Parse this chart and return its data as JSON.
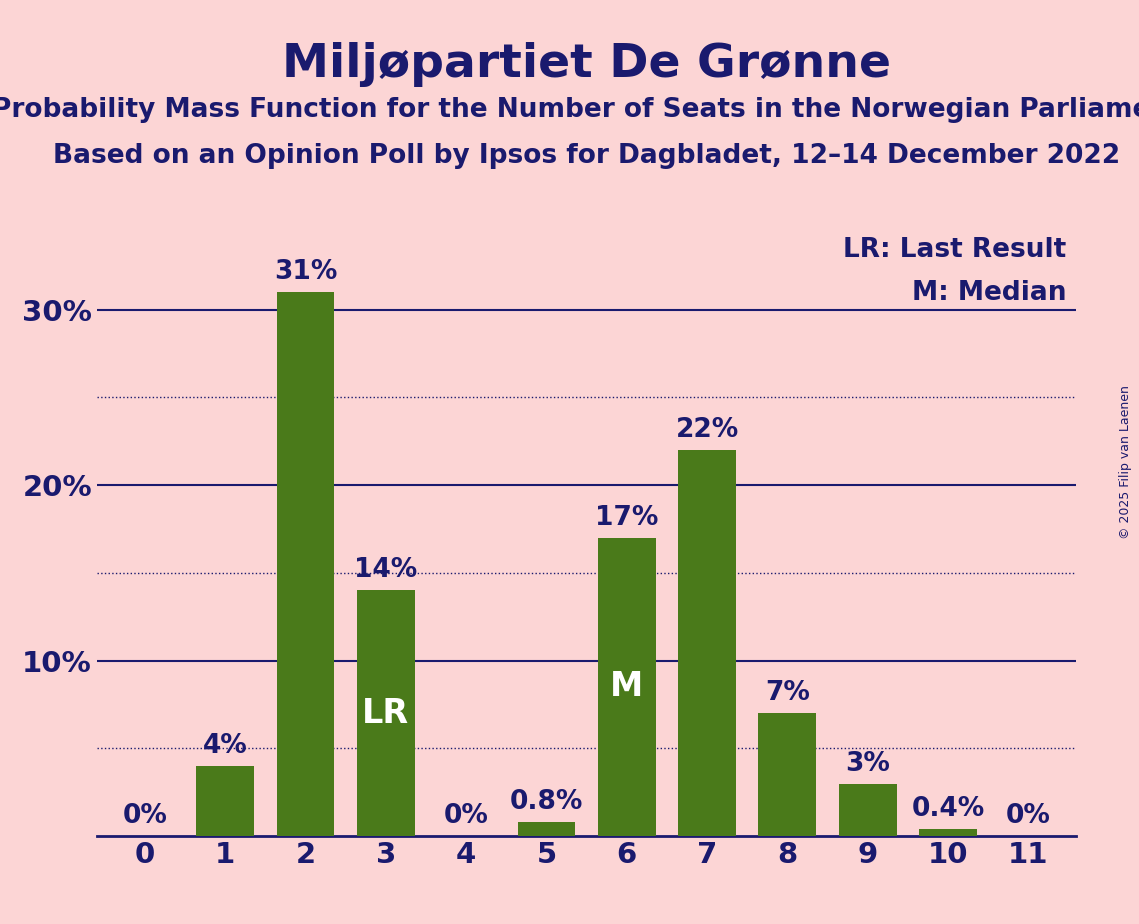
{
  "categories": [
    0,
    1,
    2,
    3,
    4,
    5,
    6,
    7,
    8,
    9,
    10,
    11
  ],
  "values": [
    0.0,
    4.0,
    31.0,
    14.0,
    0.0,
    0.8,
    17.0,
    22.0,
    7.0,
    3.0,
    0.4,
    0.0
  ],
  "bar_color": "#4a7a1a",
  "background_color": "#fcd5d5",
  "text_color": "#1a1a6e",
  "title": "Miljøpartiet De Grønne",
  "subtitle1": "Probability Mass Function for the Number of Seats in the Norwegian Parliament",
  "subtitle2": "Based on an Opinion Poll by Ipsos for Dagbladet, 12–14 December 2022",
  "legend_lr": "LR: Last Result",
  "legend_m": "M: Median",
  "copyright": "© 2025 Filip van Laenen",
  "lr_bar": 3,
  "median_bar": 6,
  "title_fontsize": 34,
  "subtitle_fontsize": 19,
  "tick_fontsize": 21,
  "bar_label_fontsize": 19,
  "legend_fontsize": 19,
  "inside_label_fontsize": 24,
  "copyright_fontsize": 9,
  "ylim": [
    0,
    35
  ],
  "yticks": [
    0,
    10,
    20,
    30
  ],
  "ytick_labels": [
    "",
    "10%",
    "20%",
    "30%"
  ],
  "dotted_grid": [
    5,
    15,
    25
  ],
  "solid_grid": [
    10,
    20,
    30
  ]
}
